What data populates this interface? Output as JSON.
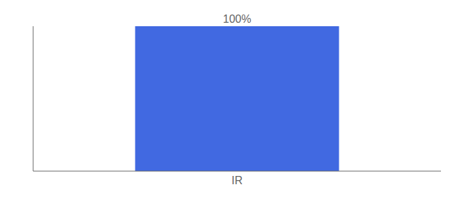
{
  "chart_data": {
    "type": "bar",
    "categories": [
      "IR"
    ],
    "values": [
      100
    ],
    "value_labels": [
      "100%"
    ],
    "data_labels": true,
    "color": "#4169E1",
    "ylim": [
      0,
      100
    ],
    "tick_labels": "x",
    "grid": false
  }
}
